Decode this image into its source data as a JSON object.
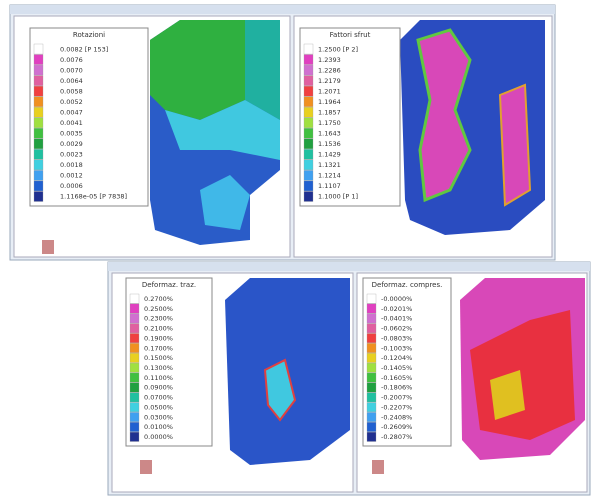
{
  "panels": [
    {
      "title": "Rotazioni",
      "labels": [
        "0.0082 [P 153]",
        "0.0076",
        "0.0070",
        "0.0064",
        "0.0058",
        "0.0052",
        "0.0047",
        "0.0041",
        "0.0035",
        "0.0029",
        "0.0023",
        "0.0018",
        "0.0012",
        "0.0006",
        "1.1168e-05 [P 7838]"
      ]
    },
    {
      "title": "Fattori sfrut",
      "labels": [
        "1.2500 [P 2]",
        "1.2393",
        "1.2286",
        "1.2179",
        "1.2071",
        "1.1964",
        "1.1857",
        "1.1750",
        "1.1643",
        "1.1536",
        "1.1429",
        "1.1321",
        "1.1214",
        "1.1107",
        "1.1000 [P 1]"
      ]
    },
    {
      "title": "Deformaz. traz.",
      "labels": [
        "0.2700%",
        "0.2500%",
        "0.2300%",
        "0.2100%",
        "0.1900%",
        "0.1700%",
        "0.1500%",
        "0.1300%",
        "0.1100%",
        "0.0900%",
        "0.0700%",
        "0.0500%",
        "0.0300%",
        "0.0100%",
        "0.0000%"
      ]
    },
    {
      "title": "Deformaz. compres.",
      "labels": [
        "-0.0000%",
        "-0.0201%",
        "-0.0401%",
        "-0.0602%",
        "-0.0803%",
        "-0.1003%",
        "-0.1204%",
        "-0.1405%",
        "-0.1605%",
        "-0.1806%",
        "-0.2007%",
        "-0.2207%",
        "-0.2408%",
        "-0.2609%",
        "-0.2807%"
      ]
    }
  ]
}
